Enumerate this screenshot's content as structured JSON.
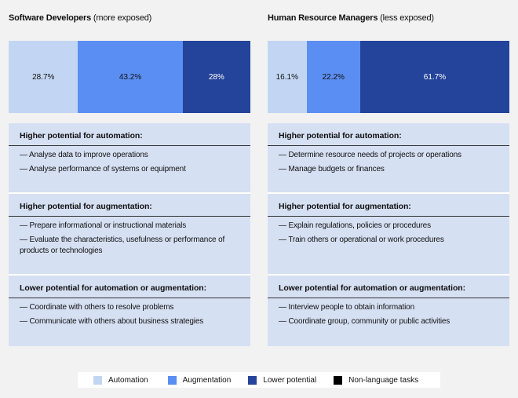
{
  "colors": {
    "automation": "#c2d6f3",
    "augmentation": "#5b8ef2",
    "lower_potential": "#24439a",
    "non_language": "#000000",
    "panel": "#d6e0f3"
  },
  "chart_data": [
    {
      "type": "bar",
      "title": "Software Developers",
      "subtitle": "(more exposed)",
      "categories": [
        "Software Developers"
      ],
      "series": [
        {
          "name": "Automation",
          "values": [
            28.7
          ]
        },
        {
          "name": "Augmentation",
          "values": [
            43.2
          ]
        },
        {
          "name": "Lower potential",
          "values": [
            28.0
          ]
        }
      ],
      "labels": [
        "28.7%",
        "43.2%",
        "28%"
      ],
      "stacked": true
    },
    {
      "type": "bar",
      "title": "Human Resource Managers",
      "subtitle": "(less exposed)",
      "categories": [
        "Human Resource Managers"
      ],
      "series": [
        {
          "name": "Automation",
          "values": [
            16.1
          ]
        },
        {
          "name": "Augmentation",
          "values": [
            22.2
          ]
        },
        {
          "name": "Lower potential",
          "values": [
            61.7
          ]
        }
      ],
      "labels": [
        "16.1%",
        "22.2%",
        "61.7%"
      ],
      "stacked": true
    }
  ],
  "columns": [
    {
      "sections": [
        {
          "heading": "Higher potential for automation:",
          "items": [
            "Analyse data to improve operations",
            "Analyse performance of systems or equipment"
          ]
        },
        {
          "heading": "Higher potential for augmentation:",
          "items": [
            "Prepare informational or instructional materials",
            "Evaluate the characteristics, usefulness or performance of products or technologies"
          ]
        },
        {
          "heading": "Lower potential for automation or augmentation:",
          "items": [
            "Coordinate with others to resolve problems",
            "Communicate with others about business strategies"
          ]
        }
      ]
    },
    {
      "sections": [
        {
          "heading": "Higher potential for automation:",
          "items": [
            "Determine resource needs of projects or operations",
            "Manage budgets or finances"
          ]
        },
        {
          "heading": "Higher potential for augmentation:",
          "items": [
            "Explain regulations, policies or procedures",
            "Train others or operational or work procedures"
          ]
        },
        {
          "heading": "Lower potential for automation or augmentation:",
          "items": [
            "Interview people to obtain information",
            "Coordinate group, community or public activities"
          ]
        }
      ]
    }
  ],
  "legend": [
    {
      "label": "Automation",
      "color": "#c2d6f3"
    },
    {
      "label": "Augmentation",
      "color": "#5b8ef2"
    },
    {
      "label": "Lower potential",
      "color": "#24439a"
    },
    {
      "label": "Non-language tasks",
      "color": "#000000"
    }
  ]
}
